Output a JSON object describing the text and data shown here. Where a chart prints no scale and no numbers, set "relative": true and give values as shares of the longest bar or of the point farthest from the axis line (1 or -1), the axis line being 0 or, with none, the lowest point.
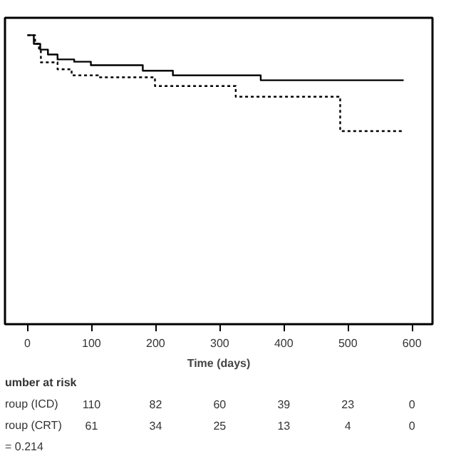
{
  "chart_data": {
    "type": "step",
    "relative": true,
    "xlabel": "Time (days)",
    "xlim": [
      -35,
      632
    ],
    "xticks": [
      0,
      100,
      200,
      300,
      400,
      500,
      600
    ],
    "grid": false,
    "series": [
      {
        "color": "#000000",
        "line_style": "solid",
        "x": [
          0,
          3,
          10,
          20,
          32,
          47,
          73,
          99,
          180,
          227,
          364,
          587
        ],
        "values": [
          1,
          1,
          0.97,
          0.95,
          0.933,
          0.916,
          0.908,
          0.896,
          0.877,
          0.861,
          0.844,
          0.844
        ]
      },
      {
        "color": "#000000",
        "line_style": "dotted",
        "x": [
          0,
          3,
          12,
          18,
          21,
          47,
          69,
          110,
          199,
          325,
          488,
          587
        ],
        "values": [
          1,
          1,
          0.97,
          0.951,
          0.906,
          0.882,
          0.861,
          0.854,
          0.824,
          0.787,
          0.668,
          0.668
        ]
      }
    ],
    "annotations": [
      "umber at risk",
      "roup (ICD)",
      "110",
      "82",
      "60",
      "39",
      "23",
      "0",
      "roup (CRT)",
      "61",
      "34",
      "25",
      "13",
      "4",
      "0",
      "= 0.214"
    ]
  }
}
